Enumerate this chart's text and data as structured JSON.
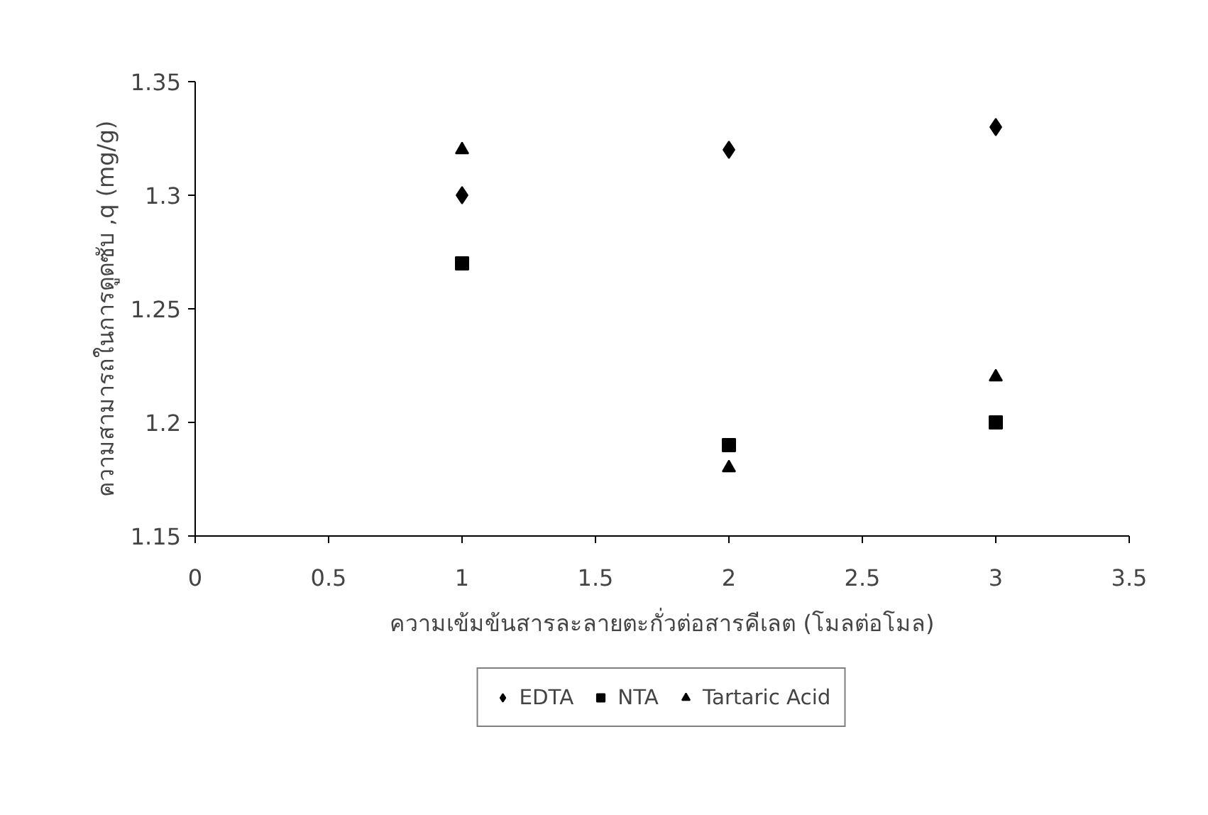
{
  "chart_data": {
    "type": "scatter",
    "xlabel": "ความเข้มข้นสารละลายตะกั่วต่อสารคีเลต (โมลต่อโมล)",
    "ylabel": "ความสามารถในการดูดซับ ,q (mg/g)",
    "x": [
      1,
      2,
      3
    ],
    "series": [
      {
        "name": "EDTA",
        "color": "#000000",
        "marker": "diamond",
        "values": [
          1.3,
          1.32,
          1.33
        ]
      },
      {
        "name": "NTA",
        "color": "#000000",
        "marker": "square",
        "values": [
          1.27,
          1.19,
          1.2
        ]
      },
      {
        "name": "Tartaric Acid",
        "color": "#000000",
        "marker": "triangle",
        "values": [
          1.32,
          1.18,
          1.22
        ]
      }
    ],
    "xlim": [
      0,
      3.5
    ],
    "xticks": [
      0,
      0.5,
      1,
      1.5,
      2,
      2.5,
      3,
      3.5
    ],
    "ylim": [
      1.15,
      1.35
    ],
    "yticks": [
      1.15,
      1.2,
      1.25,
      1.3,
      1.35
    ],
    "grid": false,
    "legend": "bottom"
  }
}
